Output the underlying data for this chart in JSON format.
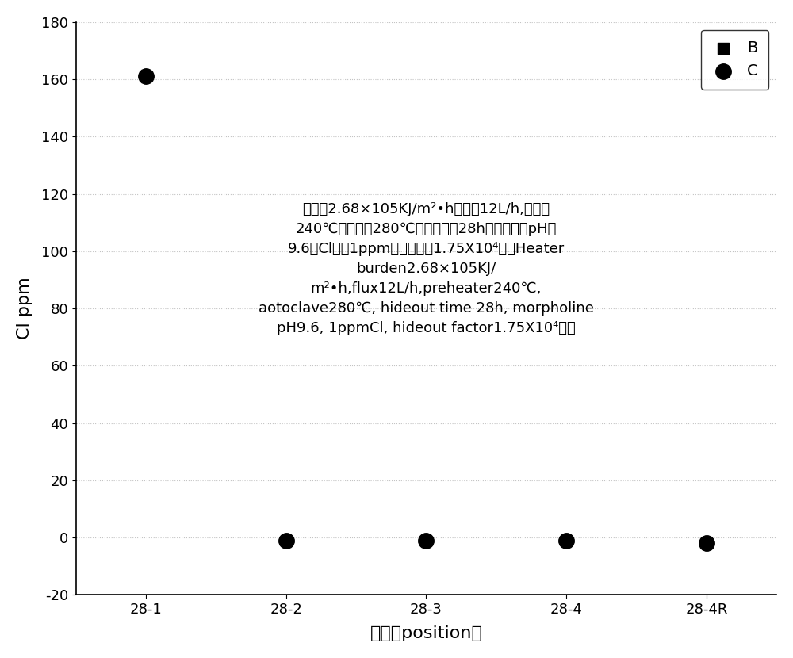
{
  "x_labels": [
    "28-1",
    "28-2",
    "28-3",
    "28-4",
    "28-4R"
  ],
  "x_positions": [
    0,
    1,
    2,
    3,
    4
  ],
  "C_values": [
    161,
    -1,
    -1,
    -1,
    -2
  ],
  "B_values": [],
  "ylim": [
    -20,
    180
  ],
  "yticks": [
    -20,
    0,
    20,
    40,
    60,
    80,
    100,
    120,
    140,
    160,
    180
  ],
  "ylabel": "Cl ppm",
  "xlabel": "位置（position）",
  "annotation_line1": "热负荷2.68×105KJ/m²•h，流量12L/h,预热器",
  "annotation_line2": "240℃，高温釜280℃，浓集时间28h，吗啉调节pH为",
  "annotation_line3": "9.6，Cl浓度1ppm，浓集因子1.75X10⁴。（Heater",
  "annotation_line4": "burden2.68×105KJ/",
  "annotation_line5": "m²•h,flux12L/h,preheater240℃,",
  "annotation_line6": "aotoclave280℃, hideout time 28h, morpholine",
  "annotation_line7": "pH9.6, 1ppmCl, hideout factor1.75X10⁴。）",
  "legend_B": "B",
  "legend_C": "C",
  "marker_color": "#000000",
  "background_color": "#ffffff",
  "marker_size_C": 14,
  "marker_size_B": 10
}
